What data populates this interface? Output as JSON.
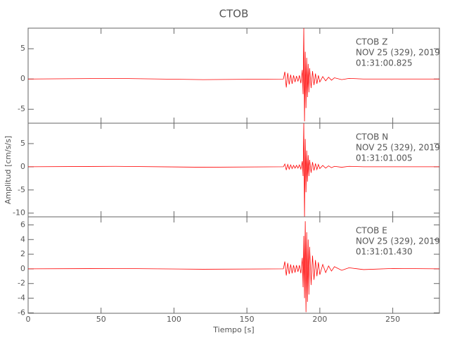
{
  "chart_data": [
    {
      "type": "line",
      "title": "CTOB",
      "annotations": [
        "CTOB   Z",
        "NOV 25 (329), 2019",
        "01:31:00.825"
      ],
      "x": [
        0,
        60,
        120,
        175,
        176,
        177,
        178,
        179,
        180,
        181,
        182,
        183,
        184,
        185,
        186,
        187,
        188,
        188.5,
        189,
        189.5,
        190,
        190.5,
        191,
        191.5,
        192,
        192.5,
        193,
        194,
        195,
        196,
        197,
        198,
        199,
        200,
        202,
        204,
        206,
        208,
        210,
        215,
        220,
        230,
        250,
        282
      ],
      "series": [
        {
          "name": "CTOB Z",
          "color": "#ff0000",
          "values": [
            0,
            0.1,
            -0.1,
            0,
            1.2,
            -1.4,
            1.0,
            -0.9,
            0.7,
            -0.8,
            0.6,
            -0.5,
            0.5,
            -0.4,
            0.6,
            -0.7,
            1.5,
            -2.5,
            8.4,
            -7.0,
            4.5,
            -4.8,
            3.5,
            -3.0,
            2.5,
            -2.2,
            1.8,
            -1.5,
            1.3,
            -1.0,
            0.9,
            -0.8,
            0.6,
            -0.5,
            0.4,
            -0.3,
            0.3,
            -0.2,
            0.2,
            -0.1,
            0.1,
            0,
            0,
            0
          ]
        }
      ],
      "xlim": [
        0,
        282
      ],
      "xticks": [
        0,
        50,
        100,
        150,
        200,
        250
      ],
      "ylim": [
        -7.3,
        8.4
      ],
      "yticks": [
        -5,
        0,
        5
      ]
    },
    {
      "type": "line",
      "ylabel": "Amplitud [cm/s/s]",
      "annotations": [
        "CTOB   N",
        "NOV 25 (329), 2019",
        "01:31:01.005"
      ],
      "x": [
        0,
        60,
        120,
        175,
        176,
        177,
        178,
        179,
        180,
        181,
        182,
        183,
        184,
        185,
        186,
        187,
        188,
        188.5,
        189,
        189.5,
        190,
        190.5,
        191,
        191.5,
        192,
        192.5,
        193,
        194,
        195,
        196,
        197,
        198,
        199,
        200,
        202,
        204,
        206,
        208,
        210,
        215,
        220,
        230,
        250,
        282
      ],
      "series": [
        {
          "name": "CTOB N",
          "color": "#ff0000",
          "values": [
            0,
            0.1,
            -0.1,
            0,
            0.6,
            -0.7,
            0.5,
            -0.5,
            0.4,
            -0.4,
            0.3,
            -0.3,
            0.3,
            -0.3,
            0.4,
            -0.5,
            1.2,
            -2.0,
            9.4,
            -10.8,
            6.0,
            -5.5,
            3.5,
            -3.2,
            2.5,
            -2.0,
            1.5,
            -1.3,
            1.0,
            -0.8,
            0.7,
            -0.6,
            0.5,
            -0.4,
            0.3,
            -0.3,
            0.2,
            -0.2,
            0.1,
            -0.1,
            0.1,
            0,
            0,
            0
          ]
        }
      ],
      "xlim": [
        0,
        282
      ],
      "xticks": [
        0,
        50,
        100,
        150,
        200,
        250
      ],
      "ylim": [
        -10.8,
        9.4
      ],
      "yticks": [
        -10,
        -5,
        0,
        5
      ]
    },
    {
      "type": "line",
      "xlabel": "Tiempo [s]",
      "annotations": [
        "CTOB   E",
        "NOV 25 (329), 2019",
        "01:31:01.430"
      ],
      "x": [
        0,
        60,
        120,
        175,
        176,
        177,
        178,
        179,
        180,
        181,
        182,
        183,
        184,
        185,
        186,
        187,
        188,
        188.5,
        189,
        189.5,
        190,
        190.5,
        191,
        191.5,
        192,
        192.5,
        193,
        194,
        195,
        196,
        197,
        198,
        199,
        200,
        202,
        204,
        206,
        208,
        210,
        215,
        220,
        230,
        250,
        282
      ],
      "series": [
        {
          "name": "CTOB E",
          "color": "#ff0000",
          "values": [
            0,
            0.05,
            -0.05,
            0,
            1.0,
            -0.9,
            0.8,
            -0.7,
            0.6,
            -0.6,
            0.5,
            -0.5,
            0.5,
            -0.4,
            0.5,
            -0.6,
            1.5,
            -2.5,
            4.5,
            -4.0,
            6.5,
            -5.9,
            5.0,
            -4.5,
            4.0,
            -3.5,
            3.0,
            -2.2,
            1.8,
            -1.5,
            1.2,
            -1.0,
            0.9,
            -0.8,
            0.6,
            -0.5,
            0.4,
            -0.3,
            0.3,
            -0.2,
            0.15,
            -0.1,
            0.05,
            0
          ]
        }
      ],
      "xlim": [
        0,
        282
      ],
      "xticks": [
        0,
        50,
        100,
        150,
        200,
        250
      ],
      "ylim": [
        -6.06,
        7.1
      ],
      "yticks": [
        -6,
        -4,
        -2,
        0,
        2,
        4,
        6
      ]
    }
  ]
}
